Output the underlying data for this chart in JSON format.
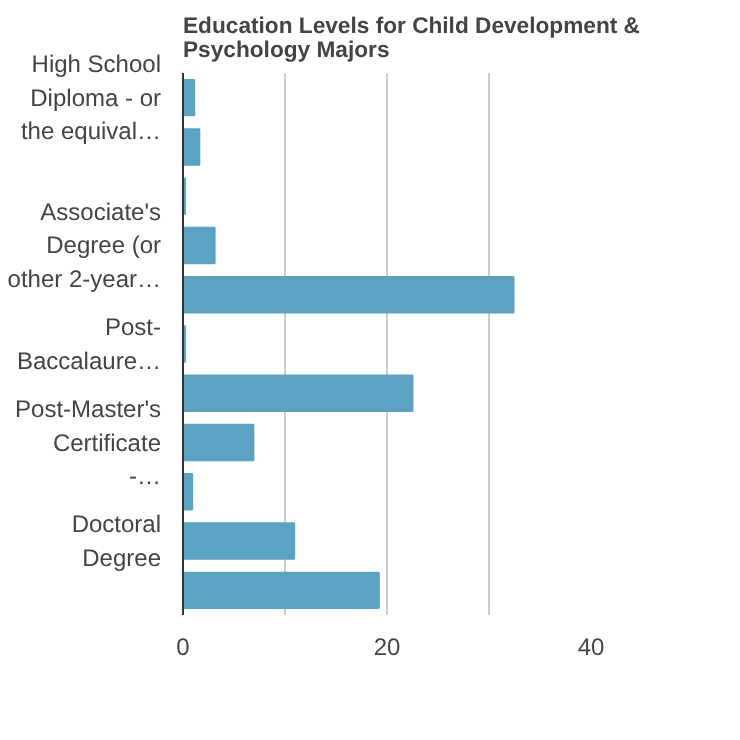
{
  "chart_data": {
    "type": "bar",
    "orientation": "horizontal",
    "title": "Education Levels for Child Development & Psychology Majors",
    "categories": [
      "High School Diploma - or the equival…",
      null,
      null,
      "Associate's Degree (or other 2-year…",
      null,
      "Post-Baccalaure…",
      null,
      "Post-Master's Certificate -…",
      null,
      "Doctoral Degree",
      null
    ],
    "values": [
      1.1,
      1.6,
      0.2,
      3.1,
      32.4,
      0.2,
      22.5,
      6.9,
      0.9,
      10.9,
      19.2
    ],
    "color": "#5ba3c2",
    "xlim": [
      0,
      40
    ],
    "xticks": [
      0,
      {
        "value": 10,
        "label": null
      },
      20,
      {
        "value": 30,
        "label": null
      },
      40
    ],
    "grid": "x"
  }
}
